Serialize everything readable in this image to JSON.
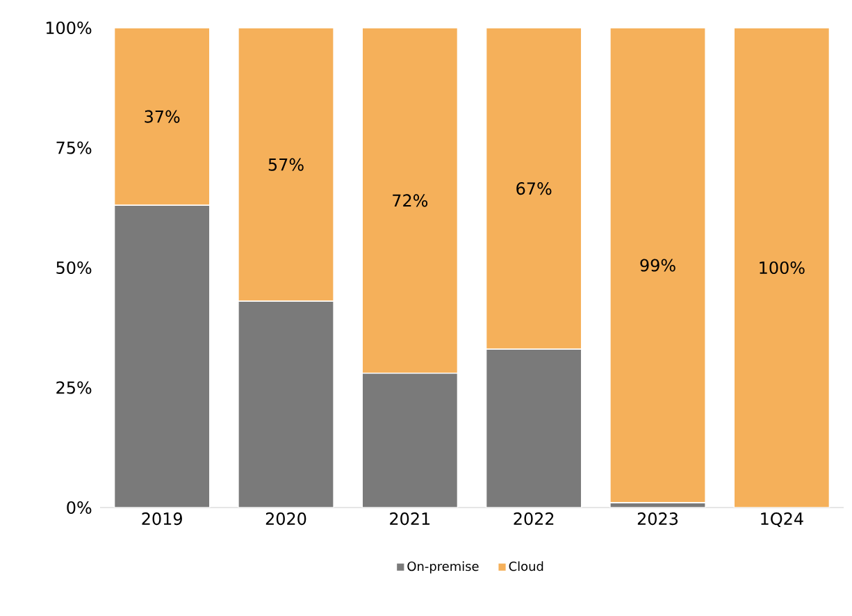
{
  "chart_data": {
    "type": "bar",
    "stacked": true,
    "legend": "bottom",
    "grid": false,
    "categories": [
      "2019",
      "2020",
      "2021",
      "2022",
      "2023",
      "1Q24"
    ],
    "ylim": [
      0,
      100
    ],
    "yticks": [
      {
        "value": 0,
        "label": "0%"
      },
      {
        "value": 25,
        "label": "25%"
      },
      {
        "value": 50,
        "label": "50%"
      },
      {
        "value": 75,
        "label": "75%"
      },
      {
        "value": 100,
        "label": "100%"
      }
    ],
    "series": [
      {
        "name": "On-premise",
        "color": "#7a7a7a",
        "values": [
          63,
          43,
          28,
          33,
          1,
          0
        ]
      },
      {
        "name": "Cloud",
        "color": "#f5b05a",
        "values": [
          37,
          57,
          72,
          67,
          99,
          100
        ],
        "value_labels": [
          "37%",
          "57%",
          "72%",
          "67%",
          "99%",
          "100%"
        ]
      }
    ]
  }
}
